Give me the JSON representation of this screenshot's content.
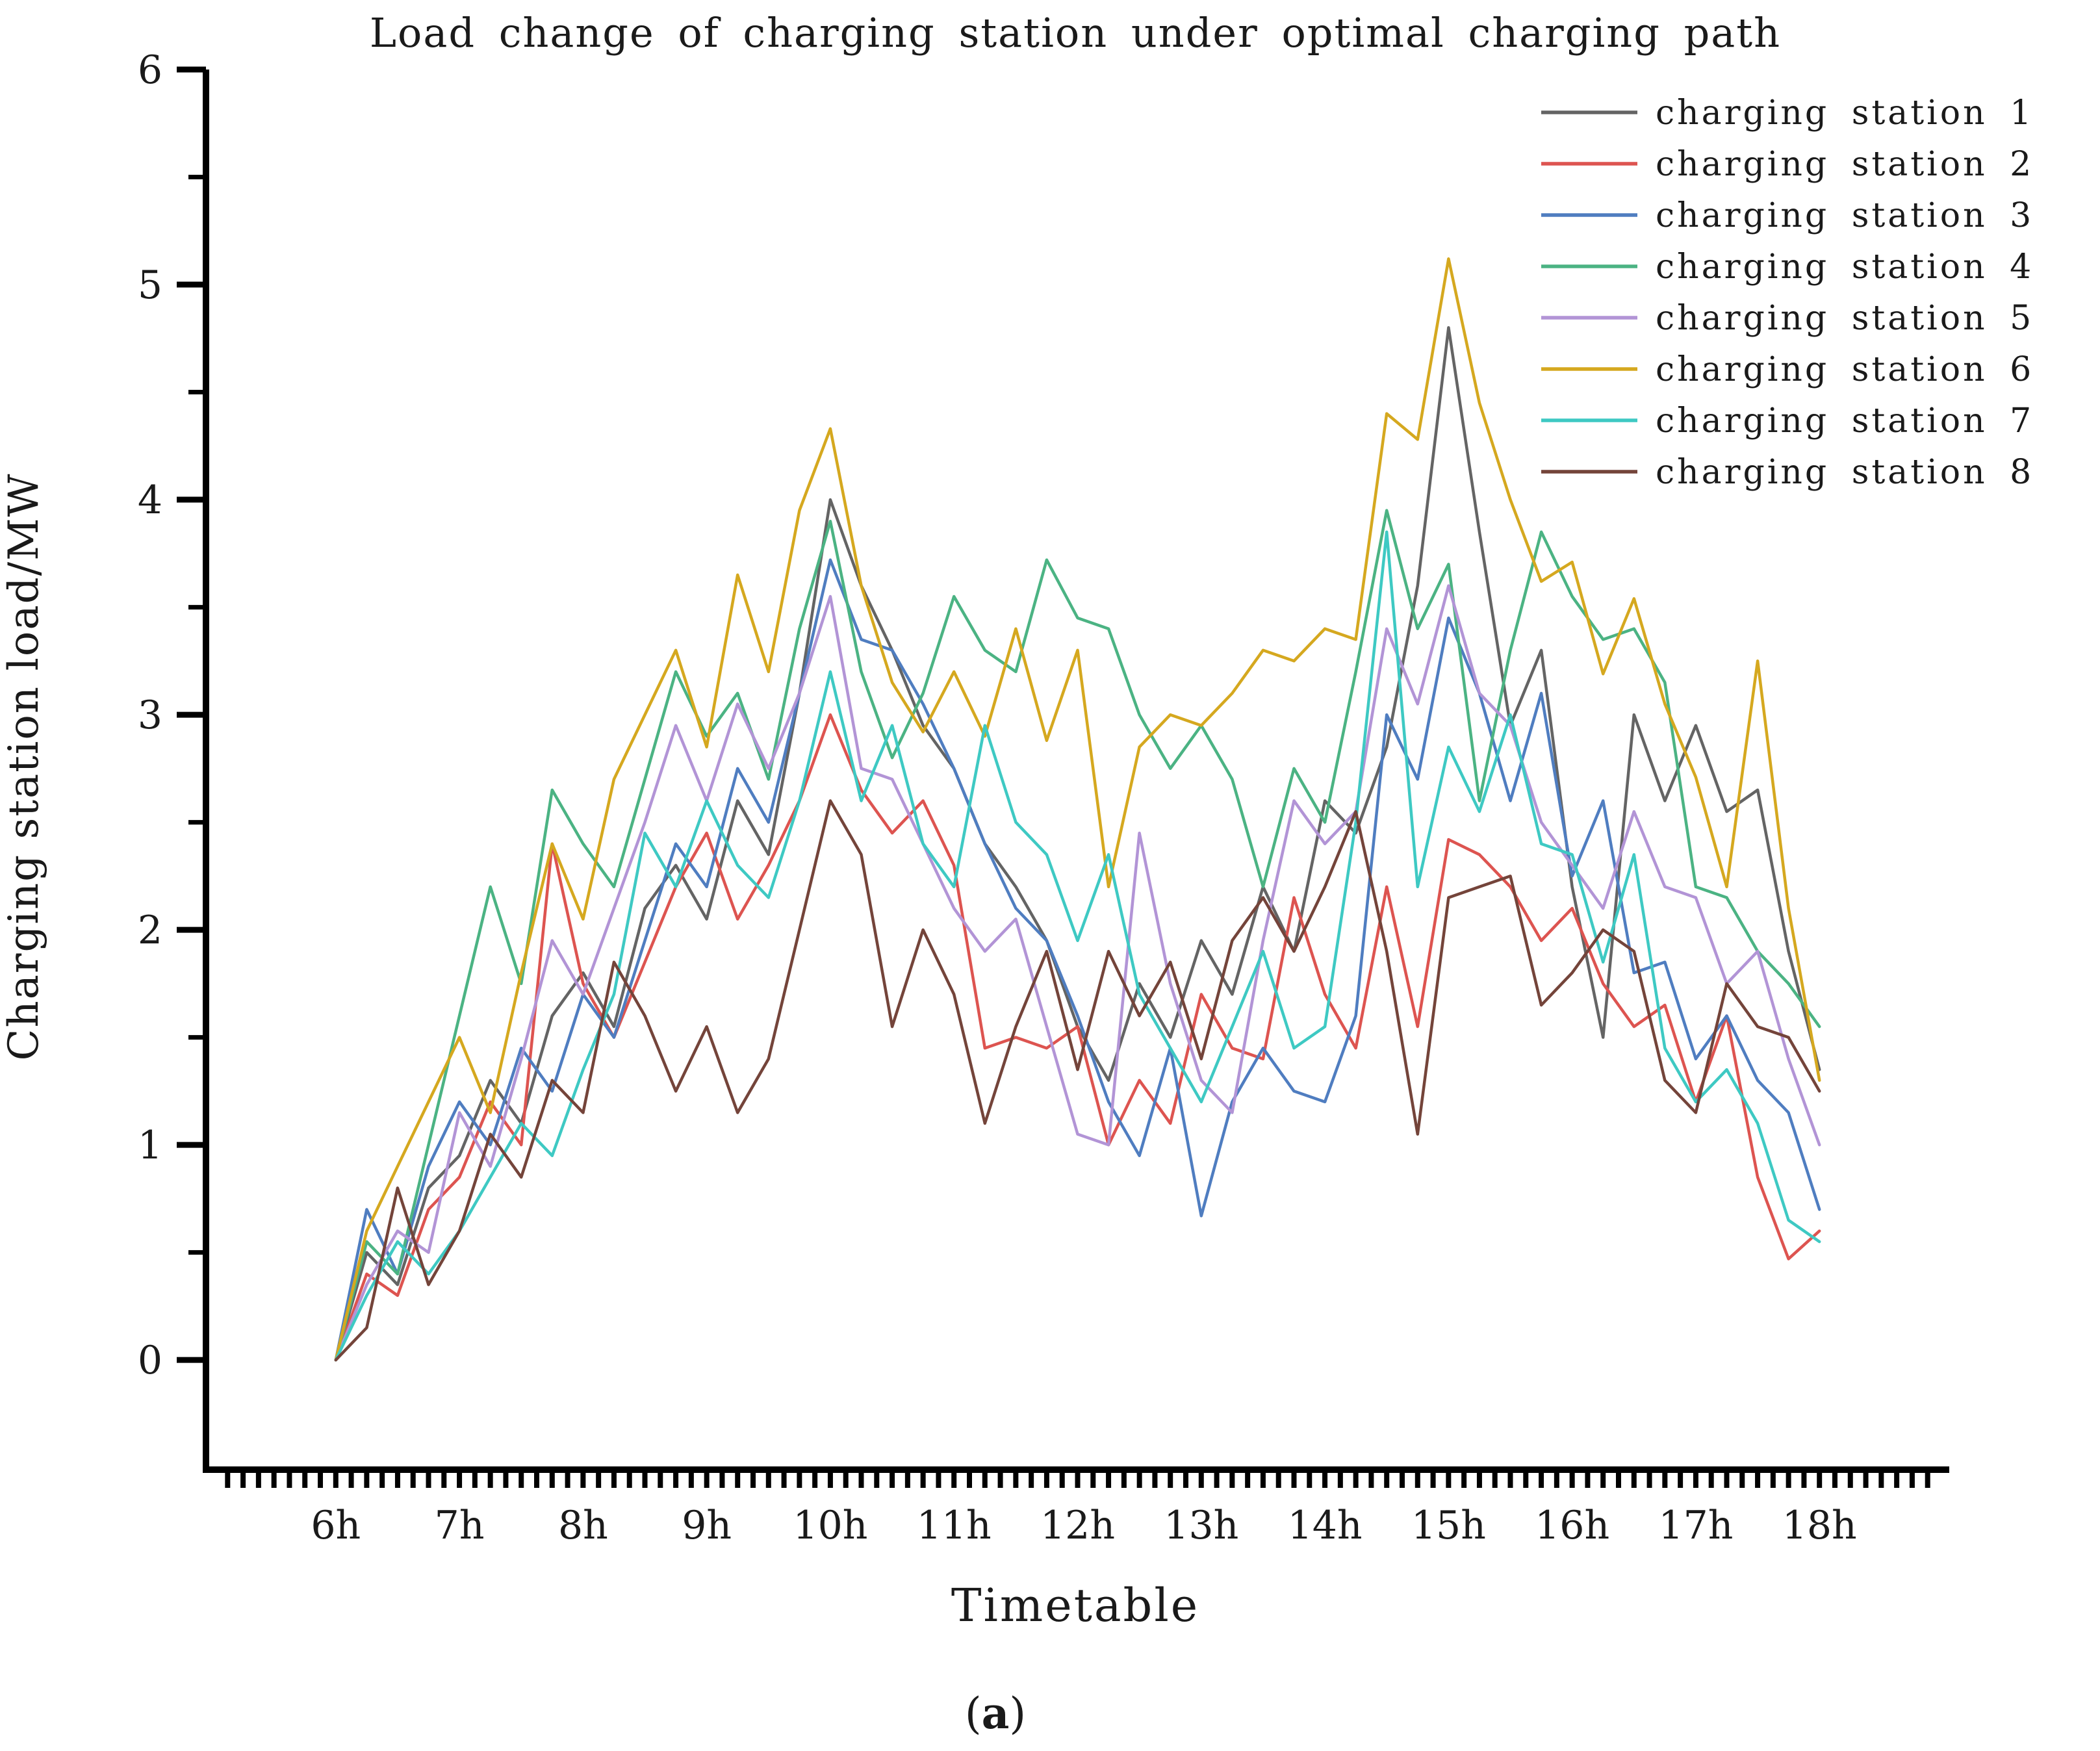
{
  "figure": {
    "title": "Load change of charging station under optimal charging path",
    "xlabel": "Timetable",
    "ylabel": "Charging station load/MW",
    "caption": "(a)"
  },
  "chart_data": {
    "type": "line",
    "title": "Load change of charging station under optimal charging path",
    "xlabel": "Timetable",
    "ylabel": "Charging station load/MW",
    "x_unit": "hour of day, samples every 15 min (approx.)",
    "grid": false,
    "legend_position": "upper right",
    "xlim": [
      4.95,
      19.05
    ],
    "ylim": [
      -0.51,
      6.0
    ],
    "yticks": [
      0,
      1,
      2,
      3,
      4,
      5,
      6
    ],
    "y_minor_step": 0.5,
    "x_minor_step": 0.125,
    "x_tick_hours": [
      6,
      7,
      8,
      9,
      10,
      11,
      12,
      13,
      14,
      15,
      16,
      17,
      18
    ],
    "x_tick_labels": [
      "6h",
      "7h",
      "8h",
      "9h",
      "10h",
      "11h",
      "12h",
      "13h",
      "14h",
      "15h",
      "16h",
      "17h",
      "18h"
    ],
    "x": [
      6.0,
      6.25,
      6.5,
      6.75,
      7.0,
      7.25,
      7.5,
      7.75,
      8.0,
      8.25,
      8.5,
      8.75,
      9.0,
      9.25,
      9.5,
      9.75,
      10.0,
      10.25,
      10.5,
      10.75,
      11.0,
      11.25,
      11.5,
      11.75,
      12.0,
      12.25,
      12.5,
      12.75,
      13.0,
      13.25,
      13.5,
      13.75,
      14.0,
      14.25,
      14.5,
      14.75,
      15.0,
      15.25,
      15.5,
      15.75,
      16.0,
      16.25,
      16.5,
      16.75,
      17.0,
      17.25,
      17.5,
      17.75,
      18.0
    ],
    "series": [
      {
        "name": "charging station 1",
        "color": "#646464",
        "values": [
          0.0,
          0.5,
          0.35,
          0.8,
          0.95,
          1.3,
          1.1,
          1.6,
          1.8,
          1.55,
          2.1,
          2.3,
          2.05,
          2.6,
          2.35,
          3.1,
          4.0,
          3.6,
          3.3,
          2.95,
          2.75,
          2.4,
          2.2,
          1.95,
          1.55,
          1.3,
          1.75,
          1.5,
          1.95,
          1.7,
          2.2,
          1.9,
          2.6,
          2.45,
          2.85,
          3.6,
          4.8,
          3.85,
          2.95,
          3.3,
          2.2,
          1.5,
          3.0,
          2.6,
          2.95,
          2.55,
          2.65,
          1.9,
          1.35
        ]
      },
      {
        "name": "charging station 2",
        "color": "#dd5450",
        "values": [
          0.0,
          0.4,
          0.3,
          0.7,
          0.85,
          1.2,
          1.0,
          2.4,
          1.75,
          1.5,
          1.85,
          2.2,
          2.45,
          2.05,
          2.3,
          2.6,
          3.0,
          2.65,
          2.45,
          2.6,
          2.3,
          1.45,
          1.5,
          1.45,
          1.55,
          1.0,
          1.3,
          1.1,
          1.7,
          1.45,
          1.4,
          2.15,
          1.7,
          1.45,
          2.2,
          1.55,
          2.42,
          2.35,
          2.2,
          1.95,
          2.1,
          1.75,
          1.55,
          1.65,
          1.2,
          1.6,
          0.85,
          0.47,
          0.6
        ]
      },
      {
        "name": "charging station 3",
        "color": "#4f7dc0",
        "values": [
          0.0,
          0.7,
          0.4,
          0.9,
          1.2,
          1.0,
          1.45,
          1.25,
          1.7,
          1.5,
          1.95,
          2.4,
          2.2,
          2.75,
          2.5,
          3.1,
          3.72,
          3.35,
          3.3,
          3.05,
          2.75,
          2.4,
          2.1,
          1.95,
          1.6,
          1.2,
          0.95,
          1.45,
          0.67,
          1.2,
          1.45,
          1.25,
          1.2,
          1.6,
          3.0,
          2.7,
          3.45,
          3.1,
          2.6,
          3.1,
          2.25,
          2.6,
          1.8,
          1.85,
          1.4,
          1.6,
          1.3,
          1.15,
          0.7
        ]
      },
      {
        "name": "charging station 4",
        "color": "#4bb383",
        "values": [
          0.0,
          0.55,
          0.4,
          1.0,
          1.6,
          2.2,
          1.75,
          2.65,
          2.4,
          2.2,
          2.7,
          3.2,
          2.9,
          3.1,
          2.7,
          3.4,
          3.9,
          3.2,
          2.8,
          3.1,
          3.55,
          3.3,
          3.2,
          3.72,
          3.45,
          3.4,
          3.0,
          2.75,
          2.95,
          2.7,
          2.2,
          2.75,
          2.5,
          3.2,
          3.95,
          3.4,
          3.7,
          2.6,
          3.3,
          3.85,
          3.55,
          3.35,
          3.4,
          3.15,
          2.2,
          2.15,
          1.9,
          1.75,
          1.55
        ]
      },
      {
        "name": "charging station 5",
        "color": "#b294d6",
        "values": [
          0.0,
          0.35,
          0.6,
          0.5,
          1.15,
          0.9,
          1.4,
          1.95,
          1.7,
          2.1,
          2.5,
          2.95,
          2.6,
          3.05,
          2.75,
          3.1,
          3.55,
          2.75,
          2.7,
          2.4,
          2.1,
          1.9,
          2.05,
          1.55,
          1.05,
          1.0,
          2.45,
          1.75,
          1.3,
          1.15,
          1.95,
          2.6,
          2.4,
          2.55,
          3.4,
          3.05,
          3.6,
          3.1,
          2.95,
          2.5,
          2.3,
          2.1,
          2.55,
          2.2,
          2.15,
          1.75,
          1.9,
          1.4,
          1.0
        ]
      },
      {
        "name": "charging station 6",
        "color": "#d5a81f",
        "values": [
          0.0,
          0.6,
          0.9,
          1.2,
          1.5,
          1.15,
          1.8,
          2.4,
          2.05,
          2.7,
          3.0,
          3.3,
          2.85,
          3.65,
          3.2,
          3.95,
          4.33,
          3.6,
          3.15,
          2.92,
          3.2,
          2.9,
          3.4,
          2.88,
          3.3,
          2.2,
          2.85,
          3.0,
          2.95,
          3.1,
          3.3,
          3.25,
          3.4,
          3.35,
          4.4,
          4.28,
          5.12,
          4.45,
          4.0,
          3.62,
          3.71,
          3.19,
          3.54,
          3.05,
          2.71,
          2.2,
          3.25,
          2.1,
          1.3
        ]
      },
      {
        "name": "charging station 7",
        "color": "#3ec9c3",
        "values": [
          0.0,
          0.3,
          0.55,
          0.4,
          0.6,
          0.85,
          1.1,
          0.95,
          1.35,
          1.7,
          2.45,
          2.2,
          2.6,
          2.3,
          2.15,
          2.6,
          3.2,
          2.6,
          2.95,
          2.4,
          2.2,
          2.95,
          2.5,
          2.35,
          1.95,
          2.35,
          1.7,
          1.45,
          1.2,
          1.55,
          1.9,
          1.45,
          1.55,
          2.5,
          3.85,
          2.2,
          2.85,
          2.55,
          3.0,
          2.4,
          2.35,
          1.85,
          2.35,
          1.45,
          1.2,
          1.35,
          1.1,
          0.65,
          0.55
        ]
      },
      {
        "name": "charging station 8",
        "color": "#74443a",
        "values": [
          0.0,
          0.15,
          0.8,
          0.35,
          0.6,
          1.05,
          0.85,
          1.3,
          1.15,
          1.85,
          1.6,
          1.25,
          1.55,
          1.15,
          1.4,
          2.0,
          2.6,
          2.35,
          1.55,
          2.0,
          1.7,
          1.1,
          1.55,
          1.9,
          1.35,
          1.9,
          1.6,
          1.85,
          1.4,
          1.95,
          2.15,
          1.9,
          2.2,
          2.55,
          1.9,
          1.05,
          2.15,
          2.2,
          2.25,
          1.65,
          1.8,
          2.0,
          1.9,
          1.3,
          1.15,
          1.75,
          1.55,
          1.5,
          1.25
        ]
      }
    ]
  },
  "layout_colors": {
    "axis": "#000000",
    "text": "#1a1a1a",
    "background": "#ffffff"
  }
}
